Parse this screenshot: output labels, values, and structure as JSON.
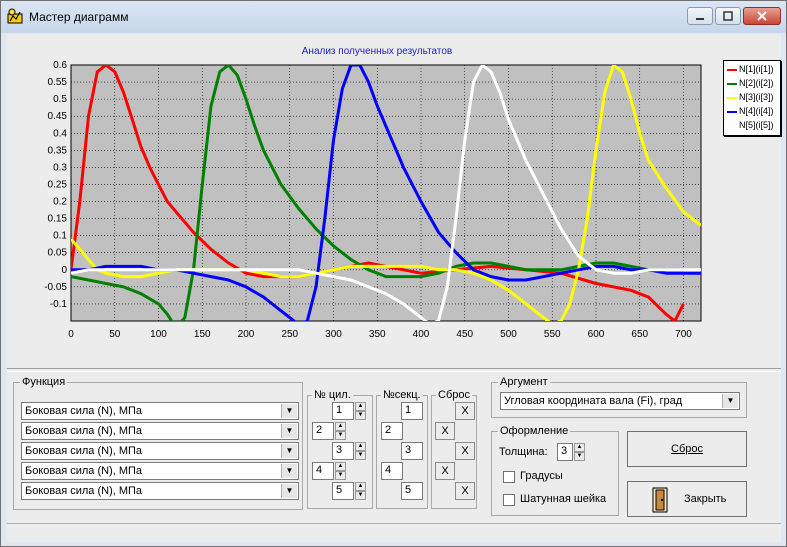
{
  "window": {
    "title": "Мастер диаграмм",
    "icon": "chart-wizard-icon"
  },
  "chart": {
    "title": "Анализ полученных результатов"
  },
  "chart_data": {
    "type": "line",
    "title": "Анализ полученных результатов",
    "xlim": [
      0,
      720
    ],
    "ylim": [
      -0.15,
      0.6
    ],
    "x_ticks": [
      "0",
      "50",
      "100",
      "150",
      "200",
      "250",
      "300",
      "350",
      "400",
      "450",
      "500",
      "550",
      "600",
      "650",
      "700"
    ],
    "y_ticks": [
      "0.6",
      "0.55",
      "0.5",
      "0.45",
      "0.4",
      "0.35",
      "0.3",
      "0.25",
      "0.2",
      "0.15",
      "0.1",
      "0.05",
      "0",
      "-0.05",
      "-0.1"
    ],
    "grid": true,
    "legend_position": "right",
    "series": [
      {
        "name": "N[1](i[1])",
        "color": "#ff0000",
        "x": [
          0,
          10,
          20,
          30,
          40,
          50,
          60,
          70,
          80,
          90,
          100,
          110,
          120,
          140,
          160,
          180,
          200,
          220,
          240,
          260,
          280,
          300,
          320,
          340,
          360,
          400,
          440,
          480,
          520,
          560,
          600,
          620,
          640,
          660,
          680,
          690,
          700
        ],
        "y": [
          0.0,
          0.2,
          0.45,
          0.58,
          0.6,
          0.58,
          0.52,
          0.44,
          0.36,
          0.3,
          0.25,
          0.2,
          0.17,
          0.11,
          0.06,
          0.02,
          -0.01,
          -0.02,
          -0.02,
          -0.02,
          -0.01,
          0.0,
          0.01,
          0.02,
          0.01,
          -0.01,
          0.0,
          0.01,
          0.0,
          -0.01,
          -0.04,
          -0.05,
          -0.06,
          -0.08,
          -0.13,
          -0.15,
          -0.1
        ]
      },
      {
        "name": "N[2](i[2])",
        "color": "#008000",
        "x": [
          0,
          20,
          40,
          60,
          80,
          100,
          110,
          120,
          130,
          140,
          150,
          160,
          170,
          180,
          190,
          200,
          210,
          220,
          240,
          260,
          280,
          300,
          320,
          340,
          360,
          380,
          400,
          420,
          440,
          460,
          480,
          500,
          520,
          540,
          560,
          580,
          600,
          620,
          640,
          660,
          680,
          700
        ],
        "y": [
          -0.02,
          -0.03,
          -0.04,
          -0.05,
          -0.07,
          -0.1,
          -0.13,
          -0.17,
          -0.14,
          0.0,
          0.25,
          0.48,
          0.58,
          0.6,
          0.57,
          0.5,
          0.42,
          0.35,
          0.25,
          0.18,
          0.12,
          0.07,
          0.03,
          0.0,
          -0.02,
          -0.02,
          -0.02,
          -0.01,
          0.01,
          0.02,
          0.02,
          0.01,
          0.0,
          0.0,
          0.0,
          0.01,
          0.02,
          0.02,
          0.01,
          0.0,
          0.0,
          0.0
        ]
      },
      {
        "name": "N[3](i[3])",
        "color": "#ffff00",
        "x": [
          0,
          10,
          20,
          30,
          40,
          60,
          80,
          100,
          120,
          140,
          160,
          180,
          200,
          220,
          240,
          260,
          280,
          300,
          320,
          340,
          360,
          380,
          400,
          420,
          440,
          460,
          480,
          500,
          520,
          540,
          550,
          560,
          570,
          580,
          590,
          600,
          610,
          620,
          630,
          640,
          650,
          660,
          680,
          700,
          720
        ],
        "y": [
          0.09,
          0.06,
          0.03,
          0.0,
          -0.01,
          -0.02,
          -0.02,
          -0.01,
          0.0,
          0.0,
          0.0,
          0.0,
          0.0,
          -0.01,
          -0.02,
          -0.02,
          -0.01,
          0.0,
          0.01,
          0.01,
          0.01,
          0.01,
          0.01,
          0.0,
          0.0,
          -0.01,
          -0.03,
          -0.06,
          -0.1,
          -0.14,
          -0.16,
          -0.15,
          -0.1,
          0.0,
          0.15,
          0.35,
          0.52,
          0.6,
          0.58,
          0.5,
          0.4,
          0.32,
          0.24,
          0.17,
          0.13
        ]
      },
      {
        "name": "N[4](i[4])",
        "color": "#0000ff",
        "x": [
          0,
          20,
          40,
          60,
          80,
          100,
          120,
          140,
          160,
          180,
          200,
          220,
          240,
          260,
          270,
          280,
          290,
          300,
          310,
          320,
          330,
          340,
          350,
          360,
          380,
          400,
          420,
          440,
          460,
          480,
          500,
          520,
          540,
          560,
          580,
          600,
          620,
          640,
          660,
          680,
          700,
          720
        ],
        "y": [
          0.0,
          0.0,
          0.01,
          0.01,
          0.01,
          0.0,
          0.0,
          -0.01,
          -0.02,
          -0.03,
          -0.05,
          -0.08,
          -0.12,
          -0.16,
          -0.15,
          -0.05,
          0.15,
          0.38,
          0.53,
          0.6,
          0.6,
          0.55,
          0.48,
          0.42,
          0.3,
          0.2,
          0.11,
          0.05,
          0.0,
          -0.02,
          -0.03,
          -0.03,
          -0.02,
          -0.01,
          0.0,
          0.01,
          0.01,
          0.0,
          0.0,
          -0.01,
          -0.01,
          -0.01
        ]
      },
      {
        "name": "N[5](i[5])",
        "color": "#ffffff",
        "x": [
          0,
          20,
          40,
          60,
          80,
          100,
          120,
          140,
          160,
          180,
          200,
          220,
          240,
          260,
          280,
          300,
          320,
          340,
          360,
          380,
          400,
          410,
          420,
          430,
          440,
          450,
          460,
          470,
          480,
          490,
          500,
          520,
          540,
          560,
          580,
          600,
          620,
          640,
          660,
          680,
          700,
          720
        ],
        "y": [
          -0.01,
          0.0,
          0.0,
          0.0,
          0.0,
          0.0,
          0.0,
          0.0,
          0.0,
          0.0,
          0.0,
          0.0,
          0.0,
          0.0,
          -0.01,
          -0.02,
          -0.03,
          -0.05,
          -0.07,
          -0.1,
          -0.14,
          -0.16,
          -0.15,
          -0.05,
          0.15,
          0.38,
          0.55,
          0.6,
          0.58,
          0.52,
          0.44,
          0.32,
          0.22,
          0.12,
          0.04,
          0.0,
          -0.01,
          -0.01,
          0.0,
          0.0,
          0.0,
          0.0
        ]
      }
    ]
  },
  "function_group": {
    "label": "Функция",
    "rows": [
      {
        "value": "Боковая сила (N), МПа"
      },
      {
        "value": "Боковая сила (N), МПа"
      },
      {
        "value": "Боковая сила (N), МПа"
      },
      {
        "value": "Боковая сила (N), МПа"
      },
      {
        "value": "Боковая сила (N), МПа"
      }
    ]
  },
  "cyl_group": {
    "label": "№ цил.",
    "values": [
      "1",
      "2",
      "3",
      "4",
      "5"
    ]
  },
  "sec_group": {
    "label": "№секц.",
    "values": [
      "1",
      "2",
      "3",
      "4",
      "5"
    ]
  },
  "reset_group": {
    "label": "Сброс",
    "glyph": "X"
  },
  "argument_group": {
    "label": "Аргумент",
    "value": "Угловая координата вала (Fi), град"
  },
  "style_group": {
    "label": "Оформление",
    "thickness_label": "Толщина:",
    "thickness_value": "3",
    "degrees_label": "Градусы",
    "rod_label": "Шатунная шейка"
  },
  "buttons": {
    "reset": "Сброс",
    "close": "Закрыть"
  },
  "title_buttons": {
    "minimize": "minimize-icon",
    "maximize": "maximize-icon",
    "close": "close-icon"
  }
}
